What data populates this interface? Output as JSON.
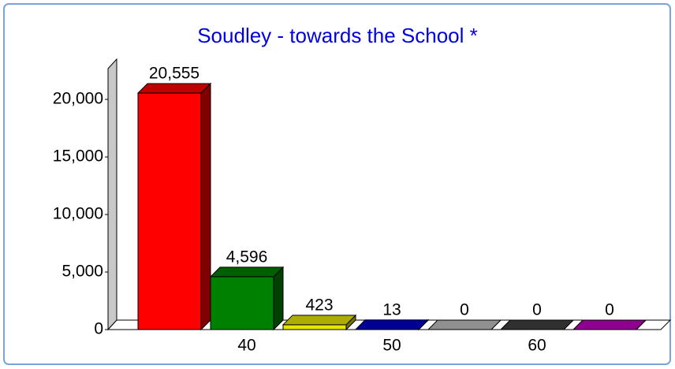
{
  "chart_data": {
    "type": "bar3d",
    "title": "Soudley - towards the School *",
    "categories": [
      null,
      "40",
      null,
      "50",
      null,
      "60",
      null
    ],
    "values": [
      20555,
      4596,
      423,
      13,
      0,
      0,
      0
    ],
    "value_labels": [
      "20,555",
      "4,596",
      "423",
      "13",
      "0",
      "0",
      "0"
    ],
    "colors": [
      "#ff0000",
      "#008000",
      "#e6e600",
      "#0000c8",
      "#c0c0c0",
      "#404040",
      "#c000c0"
    ],
    "ylim": [
      0,
      23500
    ],
    "yticks": [
      0,
      {
        "value": 5000,
        "label": "5,000"
      },
      {
        "value": 10000,
        "label": "10,000"
      },
      {
        "value": 15000,
        "label": "15,000"
      },
      {
        "value": 20000,
        "label": "20,000"
      }
    ]
  }
}
